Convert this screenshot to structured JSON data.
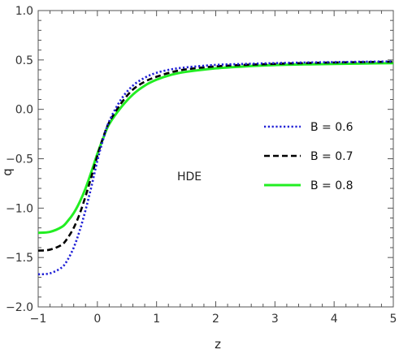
{
  "chart_data": {
    "type": "line",
    "title": "",
    "xlabel": "z",
    "ylabel": "q",
    "xlim": [
      -1,
      5
    ],
    "ylim": [
      -2.0,
      1.0
    ],
    "xticks": [
      -1,
      0,
      1,
      2,
      3,
      4,
      5
    ],
    "xtick_labels": [
      "−1",
      "0",
      "1",
      "2",
      "3",
      "4",
      "5"
    ],
    "yticks": [
      -2.0,
      -1.5,
      -1.0,
      -0.5,
      0.0,
      0.5,
      1.0
    ],
    "ytick_labels": [
      "−2.0",
      "−1.5",
      "−1.0",
      "−0.5",
      "0.0",
      "0.5",
      "1.0"
    ],
    "grid": false,
    "legend_position": "right-center",
    "annotation": "HDE",
    "series": [
      {
        "name": "B = 0.6",
        "color": "#1f1fd6",
        "style": "dotted",
        "x": [
          -1.0,
          -0.8,
          -0.6,
          -0.5,
          -0.4,
          -0.3,
          -0.2,
          -0.1,
          0.0,
          0.1,
          0.2,
          0.4,
          0.6,
          0.8,
          1.0,
          1.25,
          1.5,
          2.0,
          2.5,
          3.0,
          3.5,
          4.0,
          4.5,
          5.0
        ],
        "y": [
          -1.67,
          -1.66,
          -1.6,
          -1.52,
          -1.4,
          -1.23,
          -1.02,
          -0.78,
          -0.52,
          -0.3,
          -0.12,
          0.1,
          0.24,
          0.32,
          0.37,
          0.405,
          0.425,
          0.45,
          0.46,
          0.468,
          0.474,
          0.478,
          0.482,
          0.485
        ]
      },
      {
        "name": "B = 0.7",
        "color": "#000000",
        "style": "dashed",
        "x": [
          -1.0,
          -0.8,
          -0.6,
          -0.5,
          -0.4,
          -0.3,
          -0.2,
          -0.1,
          0.0,
          0.1,
          0.2,
          0.4,
          0.6,
          0.8,
          1.0,
          1.25,
          1.5,
          2.0,
          2.5,
          3.0,
          3.5,
          4.0,
          4.5,
          5.0
        ],
        "y": [
          -1.43,
          -1.42,
          -1.37,
          -1.3,
          -1.2,
          -1.06,
          -0.88,
          -0.68,
          -0.47,
          -0.28,
          -0.13,
          0.06,
          0.2,
          0.28,
          0.33,
          0.375,
          0.405,
          0.435,
          0.45,
          0.46,
          0.468,
          0.474,
          0.478,
          0.482
        ]
      },
      {
        "name": "B = 0.8",
        "color": "#22ee22",
        "style": "solid",
        "x": [
          -1.0,
          -0.8,
          -0.6,
          -0.5,
          -0.4,
          -0.3,
          -0.2,
          -0.1,
          0.0,
          0.1,
          0.2,
          0.4,
          0.6,
          0.8,
          1.0,
          1.25,
          1.5,
          2.0,
          2.5,
          3.0,
          3.5,
          4.0,
          4.5,
          5.0
        ],
        "y": [
          -1.25,
          -1.24,
          -1.19,
          -1.13,
          -1.05,
          -0.94,
          -0.8,
          -0.63,
          -0.45,
          -0.29,
          -0.15,
          0.02,
          0.15,
          0.24,
          0.3,
          0.35,
          0.38,
          0.415,
          0.435,
          0.448,
          0.455,
          0.46,
          0.464,
          0.468
        ]
      }
    ]
  }
}
